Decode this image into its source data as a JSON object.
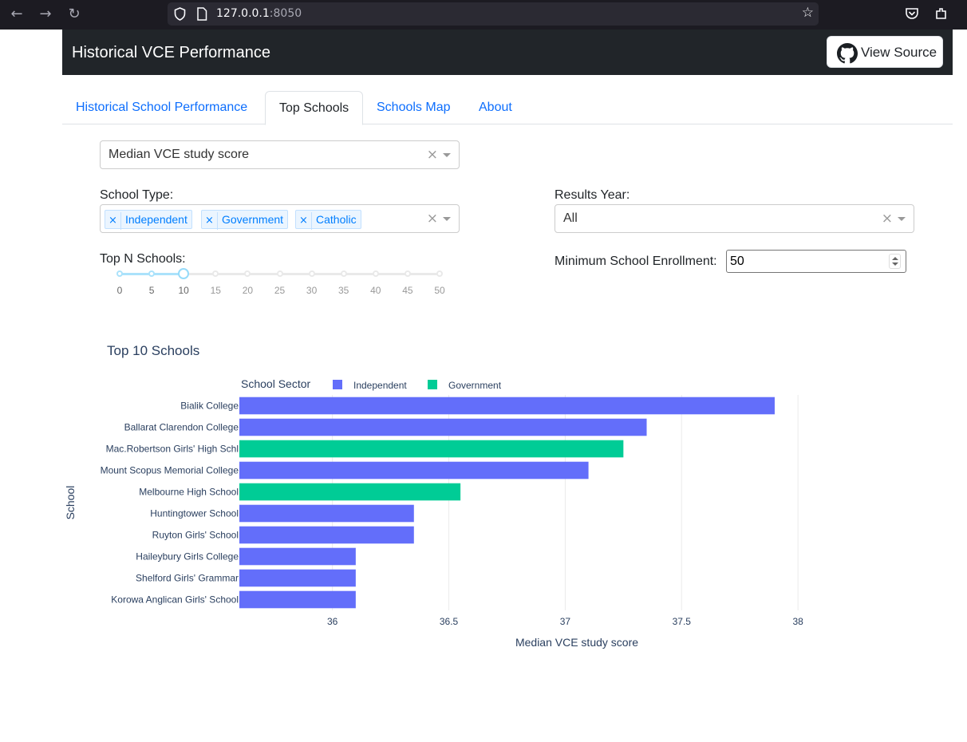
{
  "browser": {
    "url_host": "127.0.0.1",
    "url_port": ":8050"
  },
  "navbar": {
    "title": "Historical VCE Performance",
    "source_button": "View Source"
  },
  "tabs": [
    {
      "label": "Historical School Performance",
      "active": false
    },
    {
      "label": "Top Schools",
      "active": true
    },
    {
      "label": "Schools Map",
      "active": false
    },
    {
      "label": "About",
      "active": false
    }
  ],
  "metric_select": {
    "value": "Median VCE study score"
  },
  "school_type": {
    "label": "School Type:",
    "selected": [
      "Independent",
      "Government",
      "Catholic"
    ]
  },
  "results_year": {
    "label": "Results Year:",
    "value": "All"
  },
  "top_n": {
    "label": "Top N Schools:",
    "marks": [
      "0",
      "5",
      "10",
      "15",
      "20",
      "25",
      "30",
      "35",
      "40",
      "45",
      "50"
    ],
    "value": 10
  },
  "min_enrollment": {
    "label": "Minimum School Enrollment:",
    "value": "50"
  },
  "chart_data": {
    "type": "bar",
    "orientation": "horizontal",
    "title": "Top 10 Schools",
    "xlabel": "Median VCE study score",
    "ylabel": "School",
    "legend_title": "School Sector",
    "legend_placement": "top",
    "xlim": [
      35.6,
      38.5
    ],
    "xticks": [
      36,
      36.5,
      37,
      37.5,
      38
    ],
    "grid": true,
    "colors": {
      "Independent": "#636efa",
      "Government": "#00cc96"
    },
    "series": [
      {
        "name": "Independent"
      },
      {
        "name": "Government"
      }
    ],
    "bars": [
      {
        "school": "Bialik College",
        "sector": "Independent",
        "value": 37.9
      },
      {
        "school": "Ballarat Clarendon College",
        "sector": "Independent",
        "value": 37.35
      },
      {
        "school": "Mac.Robertson Girls' High Schl",
        "sector": "Government",
        "value": 37.25
      },
      {
        "school": "Mount Scopus Memorial College",
        "sector": "Independent",
        "value": 37.1
      },
      {
        "school": "Melbourne High School",
        "sector": "Government",
        "value": 36.55
      },
      {
        "school": "Huntingtower School",
        "sector": "Independent",
        "value": 36.35
      },
      {
        "school": "Ruyton Girls' School",
        "sector": "Independent",
        "value": 36.35
      },
      {
        "school": "Haileybury Girls College",
        "sector": "Independent",
        "value": 36.1
      },
      {
        "school": "Shelford Girls' Grammar",
        "sector": "Independent",
        "value": 36.1
      },
      {
        "school": "Korowa Anglican Girls' School",
        "sector": "Independent",
        "value": 36.1
      }
    ]
  }
}
